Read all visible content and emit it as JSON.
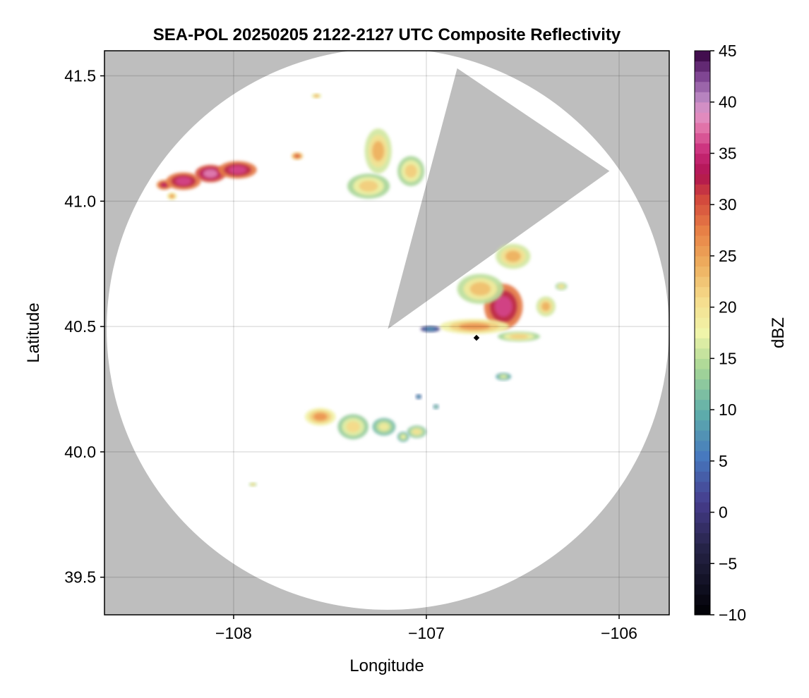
{
  "chart_data": {
    "type": "heatmap",
    "title": "SEA-POL 20250205 2122-2127 UTC Composite Reflectivity",
    "xlabel": "Longitude",
    "ylabel": "Latitude",
    "xlim": [
      -108.67,
      -105.74
    ],
    "ylim": [
      39.35,
      41.6
    ],
    "xticks": [
      -108,
      -107,
      -106
    ],
    "xtick_labels": [
      "−108",
      "−107",
      "−106"
    ],
    "yticks": [
      39.5,
      40.0,
      40.5,
      41.0,
      41.5
    ],
    "ytick_labels": [
      "39.5",
      "40.0",
      "40.5",
      "41.0",
      "41.5"
    ],
    "grid": true,
    "missing_color": "#bebebe",
    "radar": {
      "center_lon": -107.2,
      "center_lat": 40.49,
      "range_deg_lat": 1.12,
      "blocked_sector": [
        [
          -107.2,
          40.49
        ],
        [
          -106.84,
          41.53
        ],
        [
          -106.05,
          41.12
        ]
      ]
    },
    "marker": {
      "lon": -106.74,
      "lat": 40.455,
      "color": "#000000"
    },
    "colorbar": {
      "label": "dBZ",
      "min": -10,
      "max": 45,
      "ticks": [
        -10,
        -5,
        0,
        5,
        10,
        15,
        20,
        25,
        30,
        35,
        40,
        45
      ],
      "tick_labels": [
        "−10",
        "−5",
        "0",
        "5",
        "10",
        "15",
        "20",
        "25",
        "30",
        "35",
        "40",
        "45"
      ],
      "colormap": "spectral_r"
    },
    "echoes": [
      {
        "lon": -108.36,
        "lat": 41.065,
        "rx": 0.04,
        "ry": 0.02,
        "dbz": 34
      },
      {
        "lon": -108.26,
        "lat": 41.08,
        "rx": 0.09,
        "ry": 0.035,
        "dbz": 36
      },
      {
        "lon": -108.12,
        "lat": 41.11,
        "rx": 0.08,
        "ry": 0.035,
        "dbz": 38
      },
      {
        "lon": -107.98,
        "lat": 41.125,
        "rx": 0.1,
        "ry": 0.035,
        "dbz": 36
      },
      {
        "lon": -108.32,
        "lat": 41.02,
        "rx": 0.025,
        "ry": 0.015,
        "dbz": 26
      },
      {
        "lon": -107.67,
        "lat": 41.18,
        "rx": 0.03,
        "ry": 0.015,
        "dbz": 30
      },
      {
        "lon": -107.57,
        "lat": 41.42,
        "rx": 0.025,
        "ry": 0.01,
        "dbz": 25
      },
      {
        "lon": -107.25,
        "lat": 41.2,
        "rx": 0.07,
        "ry": 0.09,
        "dbz": 24
      },
      {
        "lon": -107.3,
        "lat": 41.06,
        "rx": 0.11,
        "ry": 0.05,
        "dbz": 22
      },
      {
        "lon": -107.08,
        "lat": 41.12,
        "rx": 0.07,
        "ry": 0.06,
        "dbz": 22
      },
      {
        "lon": -106.6,
        "lat": 40.58,
        "rx": 0.1,
        "ry": 0.09,
        "dbz": 36
      },
      {
        "lon": -106.72,
        "lat": 40.65,
        "rx": 0.12,
        "ry": 0.06,
        "dbz": 23
      },
      {
        "lon": -106.55,
        "lat": 40.78,
        "rx": 0.09,
        "ry": 0.05,
        "dbz": 24
      },
      {
        "lon": -106.38,
        "lat": 40.58,
        "rx": 0.05,
        "ry": 0.04,
        "dbz": 24
      },
      {
        "lon": -106.3,
        "lat": 40.66,
        "rx": 0.03,
        "ry": 0.015,
        "dbz": 21
      },
      {
        "lon": -106.75,
        "lat": 40.5,
        "rx": 0.18,
        "ry": 0.03,
        "dbz": 26
      },
      {
        "lon": -106.52,
        "lat": 40.46,
        "rx": 0.11,
        "ry": 0.02,
        "dbz": 22
      },
      {
        "lon": -106.98,
        "lat": 40.49,
        "rx": 0.05,
        "ry": 0.012,
        "dbz": 8
      },
      {
        "lon": -106.6,
        "lat": 40.3,
        "rx": 0.04,
        "ry": 0.015,
        "dbz": 17
      },
      {
        "lon": -107.55,
        "lat": 40.14,
        "rx": 0.08,
        "ry": 0.035,
        "dbz": 26
      },
      {
        "lon": -107.38,
        "lat": 40.1,
        "rx": 0.08,
        "ry": 0.05,
        "dbz": 21
      },
      {
        "lon": -107.22,
        "lat": 40.1,
        "rx": 0.06,
        "ry": 0.035,
        "dbz": 19
      },
      {
        "lon": -107.05,
        "lat": 40.08,
        "rx": 0.05,
        "ry": 0.025,
        "dbz": 20
      },
      {
        "lon": -107.12,
        "lat": 40.06,
        "rx": 0.03,
        "ry": 0.02,
        "dbz": 18
      },
      {
        "lon": -107.04,
        "lat": 40.22,
        "rx": 0.015,
        "ry": 0.01,
        "dbz": 10
      },
      {
        "lon": -106.95,
        "lat": 40.18,
        "rx": 0.015,
        "ry": 0.01,
        "dbz": 14
      },
      {
        "lon": -107.9,
        "lat": 39.87,
        "rx": 0.02,
        "ry": 0.008,
        "dbz": 22
      }
    ]
  }
}
